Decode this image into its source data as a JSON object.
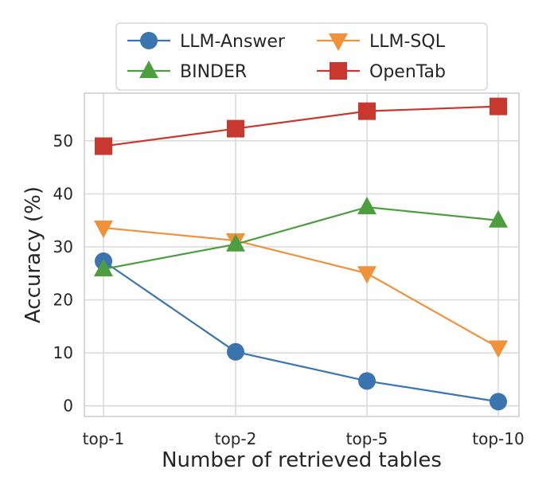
{
  "chart_data": {
    "type": "line",
    "categories": [
      "top-1",
      "top-2",
      "top-5",
      "top-10"
    ],
    "xlabel": "Number of retrieved tables",
    "ylabel": "Accuracy (%)",
    "ylim": [
      -2,
      59
    ],
    "yticks": [
      0,
      10,
      20,
      30,
      40,
      50
    ],
    "grid": true,
    "legend_position": "top",
    "series": [
      {
        "name": "LLM-Answer",
        "color": "#3a75b0",
        "marker": "circle",
        "values": [
          27.3,
          10.2,
          4.7,
          0.8
        ]
      },
      {
        "name": "LLM-SQL",
        "color": "#f0923a",
        "marker": "triangle-down",
        "values": [
          33.6,
          31.2,
          25.0,
          11.0
        ]
      },
      {
        "name": "BINDER",
        "color": "#4c9e3f",
        "marker": "triangle-up",
        "values": [
          25.8,
          30.5,
          37.5,
          35.0
        ]
      },
      {
        "name": "OpenTab",
        "color": "#c8382f",
        "marker": "square",
        "values": [
          49.0,
          52.3,
          55.6,
          56.5
        ]
      }
    ]
  }
}
